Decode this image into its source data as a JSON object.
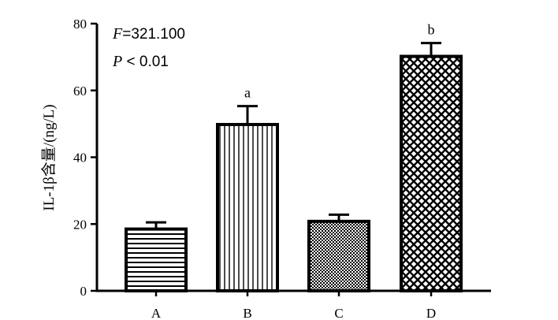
{
  "chart_data": {
    "type": "bar",
    "categories": [
      "A",
      "B",
      "C",
      "D"
    ],
    "values": [
      18.5,
      49.8,
      20.8,
      70.2
    ],
    "errors": [
      2.0,
      5.5,
      2.0,
      4.0
    ],
    "annotations": [
      "",
      "a",
      "",
      "b"
    ],
    "patterns": [
      "horizontal-lines",
      "vertical-lines",
      "fine-checker",
      "diamond-lattice"
    ],
    "ylabel": "IL-1β含量/(ng/L)",
    "xlabel": "",
    "ylim": [
      0,
      80
    ],
    "yticks": [
      0,
      20,
      40,
      60,
      80
    ],
    "grid": false,
    "stats": {
      "f_var": "F",
      "f_value": "=321.100",
      "p_var": "P",
      "p_value": " < 0.01"
    }
  }
}
